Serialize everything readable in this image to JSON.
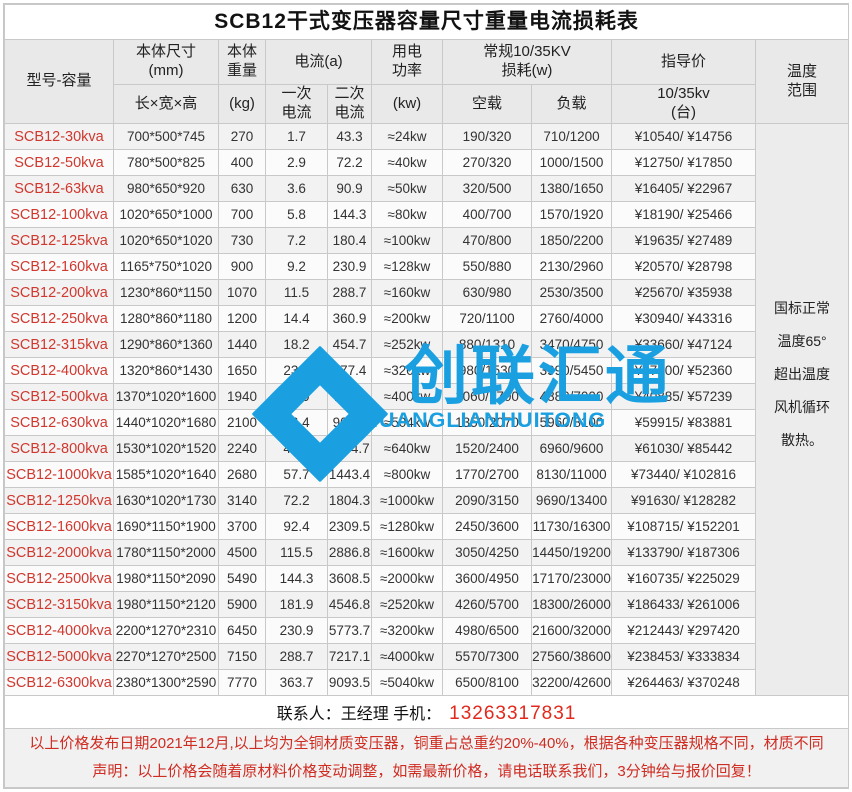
{
  "title": "SCB12干式变压器容量尺寸重量电流损耗表",
  "header": {
    "model": "型号-容量",
    "size_title": "本体尺寸\n(mm)",
    "size_sub": "长×宽×高",
    "weight_title": "本体\n重量",
    "weight_sub": "(kg)",
    "current_title": "电流(a)",
    "current_primary": "一次\n电流",
    "current_secondary": "二次\n电流",
    "power_title": "用电\n功率",
    "power_sub": "(kw)",
    "loss_title": "常规10/35KV\n损耗(w)",
    "noload": "空载",
    "load": "负载",
    "price_title": "指导价",
    "price_sub": "10/35kv\n(台)",
    "temp_title": "温度\n范围"
  },
  "rows": [
    {
      "model": "SCB12-30kva",
      "size": "700*500*745",
      "weight": "270",
      "i1": "1.7",
      "i2": "43.3",
      "power": "≈24kw",
      "noload": "190/320",
      "load": "710/1200",
      "price": "¥10540/ ¥14756"
    },
    {
      "model": "SCB12-50kva",
      "size": "780*500*825",
      "weight": "400",
      "i1": "2.9",
      "i2": "72.2",
      "power": "≈40kw",
      "noload": "270/320",
      "load": "1000/1500",
      "price": "¥12750/ ¥17850"
    },
    {
      "model": "SCB12-63kva",
      "size": "980*650*920",
      "weight": "630",
      "i1": "3.6",
      "i2": "90.9",
      "power": "≈50kw",
      "noload": "320/500",
      "load": "1380/1650",
      "price": "¥16405/ ¥22967"
    },
    {
      "model": "SCB12-100kva",
      "size": "1020*650*1000",
      "weight": "700",
      "i1": "5.8",
      "i2": "144.3",
      "power": "≈80kw",
      "noload": "400/700",
      "load": "1570/1920",
      "price": "¥18190/ ¥25466"
    },
    {
      "model": "SCB12-125kva",
      "size": "1020*650*1020",
      "weight": "730",
      "i1": "7.2",
      "i2": "180.4",
      "power": "≈100kw",
      "noload": "470/800",
      "load": "1850/2200",
      "price": "¥19635/ ¥27489"
    },
    {
      "model": "SCB12-160kva",
      "size": "1165*750*1020",
      "weight": "900",
      "i1": "9.2",
      "i2": "230.9",
      "power": "≈128kw",
      "noload": "550/880",
      "load": "2130/2960",
      "price": "¥20570/ ¥28798"
    },
    {
      "model": "SCB12-200kva",
      "size": "1230*860*1150",
      "weight": "1070",
      "i1": "11.5",
      "i2": "288.7",
      "power": "≈160kw",
      "noload": "630/980",
      "load": "2530/3500",
      "price": "¥25670/ ¥35938"
    },
    {
      "model": "SCB12-250kva",
      "size": "1280*860*1180",
      "weight": "1200",
      "i1": "14.4",
      "i2": "360.9",
      "power": "≈200kw",
      "noload": "720/1100",
      "load": "2760/4000",
      "price": "¥30940/ ¥43316"
    },
    {
      "model": "SCB12-315kva",
      "size": "1290*860*1360",
      "weight": "1440",
      "i1": "18.2",
      "i2": "454.7",
      "power": "≈252kw",
      "noload": "880/1310",
      "load": "3470/4750",
      "price": "¥33660/ ¥47124"
    },
    {
      "model": "SCB12-400kva",
      "size": "1320*860*1430",
      "weight": "1650",
      "i1": "23.1",
      "i2": "577.4",
      "power": "≈320kw",
      "noload": "980/1530",
      "load": "3990/5450",
      "price": "¥37400/ ¥52360"
    },
    {
      "model": "SCB12-500kva",
      "size": "1370*1020*1600",
      "weight": "1940",
      "i1": "28.9",
      "i2": "721.7",
      "power": "≈400kw",
      "noload": "1060/1700",
      "load": "4880/7000",
      "price": "¥40885/ ¥57239"
    },
    {
      "model": "SCB12-630kva",
      "size": "1440*1020*1680",
      "weight": "2100",
      "i1": "36.4",
      "i2": "909.4",
      "power": "≈504kw",
      "noload": "1350/2070",
      "load": "5960/8100",
      "price": "¥59915/ ¥83881"
    },
    {
      "model": "SCB12-800kva",
      "size": "1530*1020*1520",
      "weight": "2240",
      "i1": "46.2",
      "i2": "1154.7",
      "power": "≈640kw",
      "noload": "1520/2400",
      "load": "6960/9600",
      "price": "¥61030/ ¥85442"
    },
    {
      "model": "SCB12-1000kva",
      "size": "1585*1020*1640",
      "weight": "2680",
      "i1": "57.7",
      "i2": "1443.4",
      "power": "≈800kw",
      "noload": "1770/2700",
      "load": "8130/11000",
      "price": "¥73440/ ¥102816"
    },
    {
      "model": "SCB12-1250kva",
      "size": "1630*1020*1730",
      "weight": "3140",
      "i1": "72.2",
      "i2": "1804.3",
      "power": "≈1000kw",
      "noload": "2090/3150",
      "load": "9690/13400",
      "price": "¥91630/ ¥128282"
    },
    {
      "model": "SCB12-1600kva",
      "size": "1690*1150*1900",
      "weight": "3700",
      "i1": "92.4",
      "i2": "2309.5",
      "power": "≈1280kw",
      "noload": "2450/3600",
      "load": "11730/16300",
      "price": "¥108715/ ¥152201"
    },
    {
      "model": "SCB12-2000kva",
      "size": "1780*1150*2000",
      "weight": "4500",
      "i1": "115.5",
      "i2": "2886.8",
      "power": "≈1600kw",
      "noload": "3050/4250",
      "load": "14450/19200",
      "price": "¥133790/ ¥187306"
    },
    {
      "model": "SCB12-2500kva",
      "size": "1980*1150*2090",
      "weight": "5490",
      "i1": "144.3",
      "i2": "3608.5",
      "power": "≈2000kw",
      "noload": "3600/4950",
      "load": "17170/23000",
      "price": "¥160735/ ¥225029"
    },
    {
      "model": "SCB12-3150kva",
      "size": "1980*1150*2120",
      "weight": "5900",
      "i1": "181.9",
      "i2": "4546.8",
      "power": "≈2520kw",
      "noload": "4260/5700",
      "load": "18300/26000",
      "price": "¥186433/ ¥261006"
    },
    {
      "model": "SCB12-4000kva",
      "size": "2200*1270*2310",
      "weight": "6450",
      "i1": "230.9",
      "i2": "5773.7",
      "power": "≈3200kw",
      "noload": "4980/6500",
      "load": "21600/32000",
      "price": "¥212443/ ¥297420"
    },
    {
      "model": "SCB12-5000kva",
      "size": "2270*1270*2500",
      "weight": "7150",
      "i1": "288.7",
      "i2": "7217.1",
      "power": "≈4000kw",
      "noload": "5570/7300",
      "load": "27560/38600",
      "price": "¥238453/ ¥333834"
    },
    {
      "model": "SCB12-6300kva",
      "size": "2380*1300*2590",
      "weight": "7770",
      "i1": "363.7",
      "i2": "9093.5",
      "power": "≈5040kw",
      "noload": "6500/8100",
      "load": "32200/42600",
      "price": "¥264463/ ¥370248"
    }
  ],
  "temperature": {
    "lines": [
      "国标正常",
      "温度65°",
      "超出温度",
      "风机循环",
      "散热。"
    ]
  },
  "contact": {
    "label": "联系人：王经理  手机：",
    "phone": "13263317831"
  },
  "footer": {
    "line1": "以上价格发布日期2021年12月,以上均为全铜材质变压器，铜重占总重约20%-40%，根据各种变压器规格不同，材质不同",
    "line2": "声明：以上价格会随着原材料价格变动调整，如需最新价格，请电话联系我们，3分钟给与报价回复！"
  },
  "watermark": {
    "cn": "创联汇通",
    "en": "CHUANGLIANHUITONG"
  },
  "colors": {
    "model_red": "#d0382e",
    "phone_red": "#e3281c",
    "notice_red": "#cf2c22",
    "watermark_blue": "#1aa0e1",
    "header_gray": "#e9e9ea",
    "border_gray": "#c9c9c9"
  }
}
